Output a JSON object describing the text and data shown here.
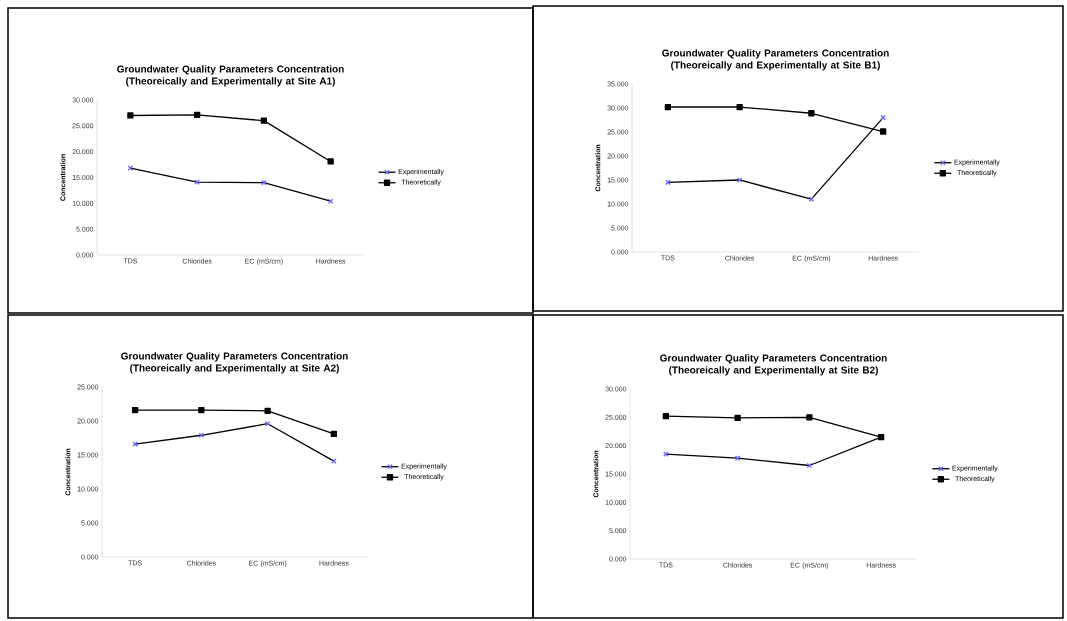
{
  "chart_data": [
    {
      "type": "line",
      "title": "Groundwater Quality Parameters Concentration (Theoreically and Experimentally at Site A1)",
      "ylabel": "Concentration",
      "categories": [
        "TDS",
        "Chlorides",
        "EC (mS/cm)",
        "Hardness"
      ],
      "ylim": [
        0,
        30
      ],
      "yticks": [
        {
          "value": 0,
          "label": "0.000"
        },
        {
          "value": 5,
          "label": "5.000"
        },
        {
          "value": 10,
          "label": "10.000"
        },
        {
          "value": 15,
          "label": "15.000"
        },
        {
          "value": 20,
          "label": "20.000"
        },
        {
          "value": 25,
          "label": "25.000"
        },
        {
          "value": 30,
          "label": "30.000"
        }
      ],
      "legend": "right",
      "series": [
        {
          "name": "Experimentally",
          "color": "#000000",
          "marker": "cross",
          "values": [
            16.8,
            14.1,
            14.0,
            10.4
          ]
        },
        {
          "name": "Theoretically",
          "color": "#000000",
          "marker": "square",
          "values": [
            27.0,
            27.1,
            26.0,
            18.1
          ]
        }
      ]
    },
    {
      "type": "line",
      "title": "Groundwater Quality Parameters Concentration (Theoreically and Experimentally at Site B1)",
      "ylabel": "Concentration",
      "categories": [
        "TDS",
        "Chlorides",
        "EC (mS/cm)",
        "Hardness"
      ],
      "ylim": [
        0,
        35
      ],
      "yticks": [
        {
          "value": 0,
          "label": "0.000"
        },
        {
          "value": 5,
          "label": "5.000"
        },
        {
          "value": 10,
          "label": "10.000"
        },
        {
          "value": 15,
          "label": "15.000"
        },
        {
          "value": 20,
          "label": "20.000"
        },
        {
          "value": 25,
          "label": "25.000"
        },
        {
          "value": 30,
          "label": "30.000"
        },
        {
          "value": 35,
          "label": "35.000"
        }
      ],
      "legend": "right",
      "series": [
        {
          "name": "Experimentally",
          "color": "#000000",
          "marker": "cross",
          "values": [
            14.5,
            15.0,
            11.0,
            28.0
          ]
        },
        {
          "name": "Theoretically",
          "color": "#000000",
          "marker": "square",
          "values": [
            30.2,
            30.2,
            28.9,
            25.1
          ]
        }
      ]
    },
    {
      "type": "line",
      "title": "Groundwater Quality Parameters Concentration (Theoreically and Experimentally at Site A2)",
      "ylabel": "Concentration",
      "categories": [
        "TDS",
        "Chlorides",
        "EC (mS/cm)",
        "Hardness"
      ],
      "ylim": [
        0,
        25
      ],
      "yticks": [
        {
          "value": 0,
          "label": "0.000"
        },
        {
          "value": 5,
          "label": "5.000"
        },
        {
          "value": 10,
          "label": "10.000"
        },
        {
          "value": 15,
          "label": "15.000"
        },
        {
          "value": 20,
          "label": "20.000"
        },
        {
          "value": 25,
          "label": "25.000"
        }
      ],
      "legend": "right",
      "series": [
        {
          "name": "Experimentally",
          "color": "#000000",
          "marker": "cross",
          "values": [
            16.6,
            17.9,
            19.6,
            14.1
          ]
        },
        {
          "name": "Theoretically",
          "color": "#000000",
          "marker": "square",
          "values": [
            21.6,
            21.6,
            21.5,
            18.1
          ]
        }
      ]
    },
    {
      "type": "line",
      "title": "Groundwater Quality Parameters Concentration (Theoreically and Experimentally at Site B2)",
      "ylabel": "Concentration",
      "categories": [
        "TDS",
        "Chlorides",
        "EC (mS/cm)",
        "Hardness"
      ],
      "ylim": [
        0,
        30
      ],
      "yticks": [
        {
          "value": 0,
          "label": "0.000"
        },
        {
          "value": 5,
          "label": "5.000"
        },
        {
          "value": 10,
          "label": "10.000"
        },
        {
          "value": 15,
          "label": "15.000"
        },
        {
          "value": 20,
          "label": "20.000"
        },
        {
          "value": 25,
          "label": "25.000"
        },
        {
          "value": 30,
          "label": "30.000"
        }
      ],
      "legend": "right",
      "series": [
        {
          "name": "Experimentally",
          "color": "#000000",
          "marker": "cross",
          "values": [
            18.5,
            17.8,
            16.5,
            21.5
          ]
        },
        {
          "name": "Theoretically",
          "color": "#000000",
          "marker": "square",
          "values": [
            25.2,
            24.9,
            25.0,
            21.5
          ]
        }
      ]
    }
  ]
}
